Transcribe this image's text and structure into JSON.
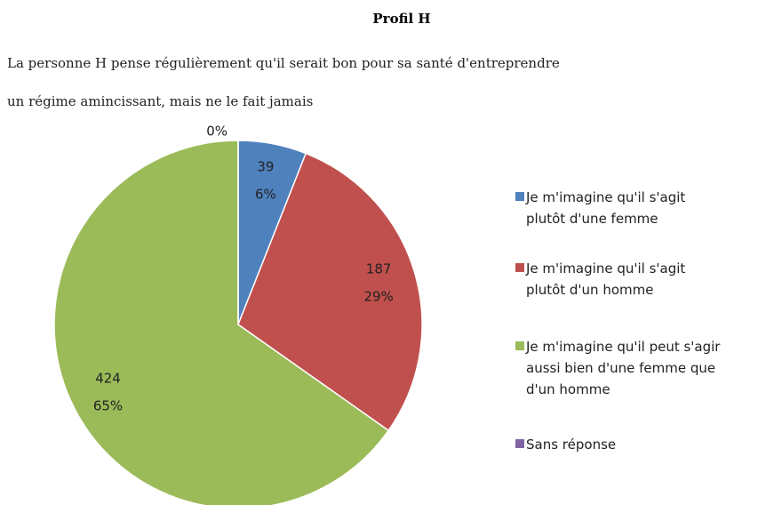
{
  "chart_data": {
    "type": "pie",
    "title": "Profil H",
    "subtitle": [
      "La personne H pense régulièrement qu'il serait bon pour sa santé d'entreprendre",
      "un régime amincissant, mais ne le fait jamais"
    ],
    "series": [
      {
        "name": "Je m'imagine  qu'il s'agit plutôt d'une femme",
        "color": "#4f81bd"
      },
      {
        "name": "Je m'imagine  qu'il s'agit plutôt d'un homme",
        "color": "#c0504d"
      },
      {
        "name": "Je m'imagine  qu'il peut s'agir aussi bien d'une femme que d'un homme",
        "color": "#9bbb59"
      },
      {
        "name": "Sans réponse",
        "color": "#8064a2"
      }
    ],
    "values": [
      39,
      187,
      424,
      0
    ],
    "value_labels": [
      "6%",
      "29%",
      "65%",
      "0%"
    ],
    "legend": "right"
  }
}
